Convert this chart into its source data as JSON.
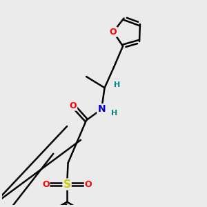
{
  "bg_color": "#ebebeb",
  "bond_color": "#000000",
  "bond_width": 1.8,
  "atom_colors": {
    "O": "#ff0000",
    "N": "#0000cc",
    "S": "#cccc00",
    "H": "#008888",
    "C": "#000000"
  },
  "figsize": [
    3.0,
    3.0
  ],
  "dpi": 100,
  "xlim": [
    0,
    10
  ],
  "ylim": [
    0,
    10
  ]
}
